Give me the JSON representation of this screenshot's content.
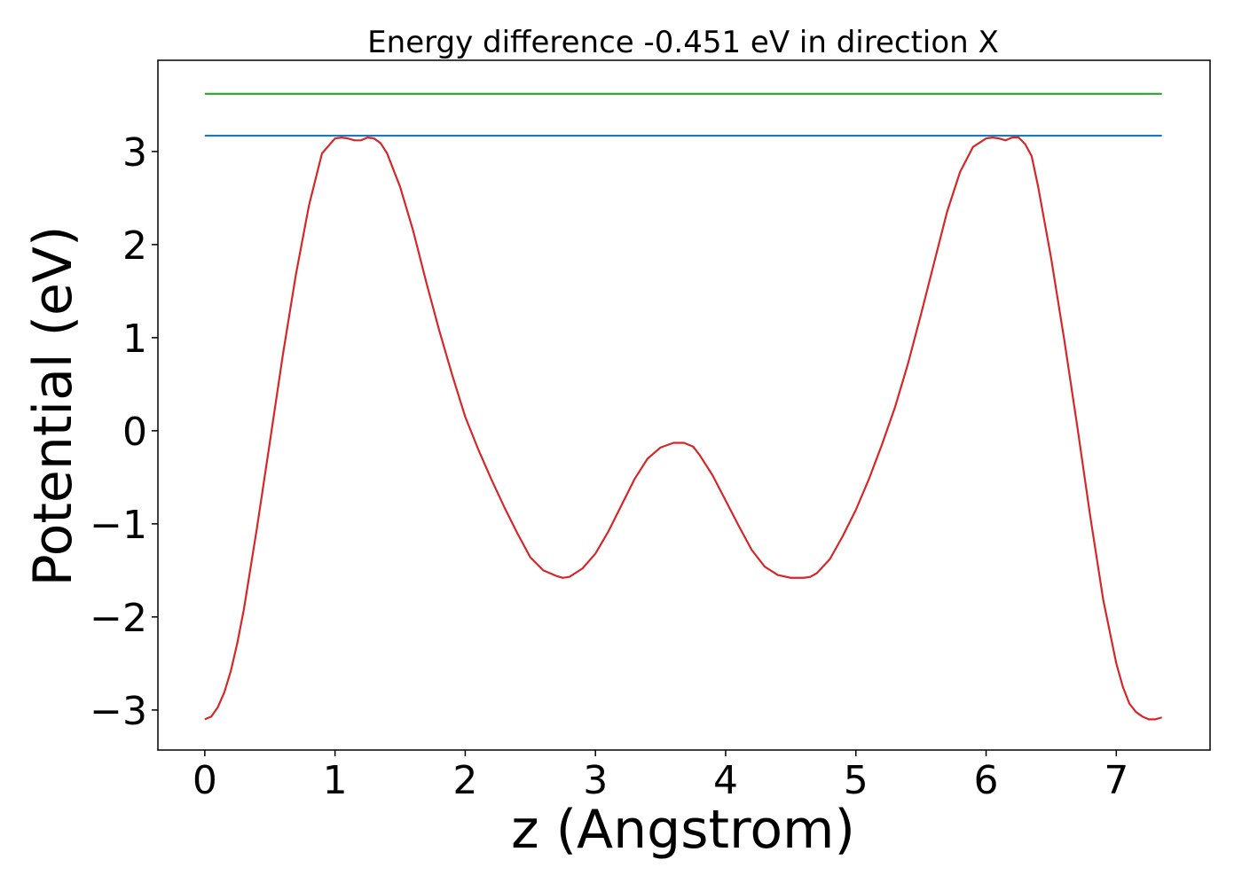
{
  "chart_data": {
    "type": "line",
    "title": "Energy difference -0.451 eV in direction X",
    "xlabel": "z (Angstrom)",
    "ylabel": "Potential (eV)",
    "xlim": [
      -0.36,
      7.72
    ],
    "ylim": [
      -3.43,
      3.98
    ],
    "xticks": [
      0,
      1,
      2,
      3,
      4,
      5,
      6,
      7
    ],
    "xtick_labels": [
      "0",
      "1",
      "2",
      "3",
      "4",
      "5",
      "6",
      "7"
    ],
    "yticks": [
      -3,
      -2,
      -1,
      0,
      1,
      2,
      3
    ],
    "ytick_labels": [
      "−3",
      "−2",
      "−1",
      "0",
      "1",
      "2",
      "3"
    ],
    "grid": false,
    "series": [
      {
        "color": "#d62728",
        "x": [
          0.0,
          0.05,
          0.1,
          0.15,
          0.2,
          0.25,
          0.3,
          0.4,
          0.5,
          0.6,
          0.7,
          0.8,
          0.9,
          1.0,
          1.05,
          1.1,
          1.15,
          1.2,
          1.25,
          1.3,
          1.35,
          1.4,
          1.5,
          1.6,
          1.7,
          1.8,
          1.9,
          2.0,
          2.1,
          2.2,
          2.3,
          2.4,
          2.5,
          2.6,
          2.7,
          2.75,
          2.8,
          2.9,
          3.0,
          3.1,
          3.2,
          3.3,
          3.4,
          3.5,
          3.6,
          3.68,
          3.75,
          3.8,
          3.9,
          4.0,
          4.1,
          4.2,
          4.3,
          4.4,
          4.5,
          4.6,
          4.65,
          4.7,
          4.8,
          4.9,
          5.0,
          5.1,
          5.2,
          5.3,
          5.4,
          5.5,
          5.6,
          5.7,
          5.8,
          5.9,
          6.0,
          6.05,
          6.1,
          6.15,
          6.2,
          6.25,
          6.3,
          6.35,
          6.4,
          6.5,
          6.6,
          6.7,
          6.8,
          6.9,
          7.0,
          7.05,
          7.1,
          7.15,
          7.2,
          7.25,
          7.3,
          7.35
        ],
        "y": [
          -3.1,
          -3.07,
          -2.97,
          -2.81,
          -2.58,
          -2.28,
          -1.92,
          -1.05,
          -0.12,
          0.82,
          1.68,
          2.42,
          2.98,
          3.14,
          3.15,
          3.14,
          3.12,
          3.12,
          3.15,
          3.14,
          3.09,
          2.98,
          2.62,
          2.15,
          1.6,
          1.08,
          0.6,
          0.15,
          -0.2,
          -0.52,
          -0.82,
          -1.1,
          -1.36,
          -1.5,
          -1.56,
          -1.58,
          -1.57,
          -1.48,
          -1.32,
          -1.08,
          -0.8,
          -0.52,
          -0.3,
          -0.18,
          -0.13,
          -0.13,
          -0.17,
          -0.26,
          -0.48,
          -0.75,
          -1.02,
          -1.28,
          -1.46,
          -1.55,
          -1.58,
          -1.58,
          -1.57,
          -1.53,
          -1.38,
          -1.13,
          -0.85,
          -0.52,
          -0.15,
          0.25,
          0.72,
          1.25,
          1.8,
          2.35,
          2.78,
          3.05,
          3.14,
          3.15,
          3.14,
          3.12,
          3.15,
          3.15,
          3.08,
          2.95,
          2.62,
          1.85,
          0.98,
          0.05,
          -0.92,
          -1.82,
          -2.5,
          -2.75,
          -2.93,
          -3.02,
          -3.07,
          -3.1,
          -3.1,
          -3.08
        ]
      },
      {
        "color": "#1f77b4",
        "x": [
          0.0,
          7.35
        ],
        "y": [
          3.17,
          3.17
        ]
      },
      {
        "color": "#2ca02c",
        "x": [
          0.0,
          7.35
        ],
        "y": [
          3.62,
          3.62
        ]
      }
    ]
  }
}
